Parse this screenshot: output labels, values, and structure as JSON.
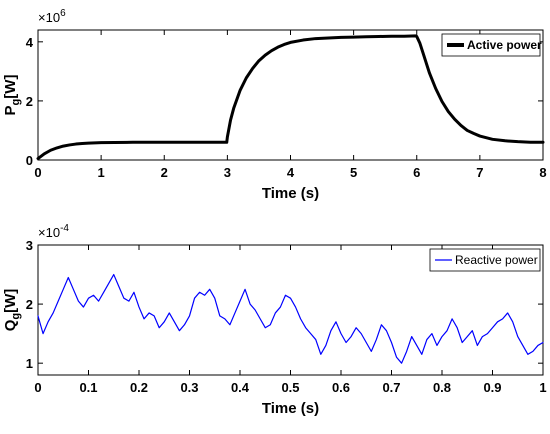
{
  "chart_data": [
    {
      "type": "line",
      "title": "",
      "xlabel": "Time (s)",
      "ylabel": "P",
      "ylabel_sub": "g",
      "ylabel_unit": "[W]",
      "y_exponent_base": "×10",
      "y_exponent_power": "6",
      "xlim": [
        0,
        8
      ],
      "ylim": [
        0,
        4.4
      ],
      "x_ticks": [
        0,
        1,
        2,
        3,
        4,
        5,
        6,
        7,
        8
      ],
      "x_tick_labels": [
        "0",
        "1",
        "2",
        "3",
        "4",
        "5",
        "6",
        "7",
        "8"
      ],
      "y_ticks": [
        0,
        2,
        4
      ],
      "y_tick_labels": [
        "0",
        "2",
        "4"
      ],
      "grid": false,
      "legend_position": "top-right",
      "legend_bold": true,
      "series": [
        {
          "name": "Active power",
          "color": "#000000",
          "line_width": 3,
          "x": [
            0,
            0.1,
            0.2,
            0.3,
            0.4,
            0.5,
            0.6,
            0.7,
            0.8,
            1.0,
            1.5,
            2.0,
            2.5,
            2.99,
            3.0,
            3.05,
            3.1,
            3.2,
            3.3,
            3.4,
            3.5,
            3.6,
            3.7,
            3.8,
            3.9,
            4.0,
            4.2,
            4.4,
            4.6,
            4.8,
            5.0,
            5.2,
            5.4,
            5.6,
            5.8,
            5.98,
            6.0,
            6.05,
            6.1,
            6.2,
            6.3,
            6.4,
            6.5,
            6.6,
            6.7,
            6.8,
            6.9,
            7.0,
            7.2,
            7.4,
            7.6,
            7.8,
            8.0
          ],
          "y": [
            0.05,
            0.21,
            0.33,
            0.41,
            0.47,
            0.51,
            0.54,
            0.56,
            0.57,
            0.59,
            0.6,
            0.6,
            0.6,
            0.6,
            0.78,
            1.35,
            1.75,
            2.35,
            2.78,
            3.1,
            3.36,
            3.55,
            3.7,
            3.82,
            3.91,
            3.98,
            4.06,
            4.11,
            4.13,
            4.15,
            4.16,
            4.17,
            4.18,
            4.19,
            4.19,
            4.2,
            4.18,
            3.95,
            3.62,
            2.95,
            2.42,
            1.98,
            1.64,
            1.38,
            1.17,
            1.0,
            0.9,
            0.81,
            0.7,
            0.65,
            0.62,
            0.6,
            0.6
          ]
        }
      ]
    },
    {
      "type": "line",
      "title": "",
      "xlabel": "Time (s)",
      "ylabel": "Q",
      "ylabel_sub": "g",
      "ylabel_unit": "[W]",
      "y_exponent_base": "×10",
      "y_exponent_power": "-4",
      "xlim": [
        0,
        1
      ],
      "ylim": [
        0.8,
        3.0
      ],
      "x_ticks": [
        0,
        0.1,
        0.2,
        0.3,
        0.4,
        0.5,
        0.6,
        0.7,
        0.8,
        0.9,
        1
      ],
      "x_tick_labels": [
        "0",
        "0.1",
        "0.2",
        "0.3",
        "0.4",
        "0.5",
        "0.6",
        "0.7",
        "0.8",
        "0.9",
        "1"
      ],
      "y_ticks": [
        1,
        2,
        3
      ],
      "y_tick_labels": [
        "1",
        "2",
        "3"
      ],
      "grid": false,
      "legend_position": "top-right",
      "legend_bold": false,
      "series": [
        {
          "name": "Reactive power",
          "color": "#0000ff",
          "line_width": 1.2,
          "x": [
            0,
            0.01,
            0.02,
            0.03,
            0.04,
            0.05,
            0.06,
            0.07,
            0.08,
            0.09,
            0.1,
            0.11,
            0.12,
            0.13,
            0.14,
            0.15,
            0.16,
            0.17,
            0.18,
            0.19,
            0.2,
            0.21,
            0.22,
            0.23,
            0.24,
            0.25,
            0.26,
            0.27,
            0.28,
            0.29,
            0.3,
            0.31,
            0.32,
            0.33,
            0.34,
            0.35,
            0.36,
            0.37,
            0.38,
            0.39,
            0.4,
            0.41,
            0.42,
            0.43,
            0.44,
            0.45,
            0.46,
            0.47,
            0.48,
            0.49,
            0.5,
            0.51,
            0.52,
            0.53,
            0.54,
            0.55,
            0.56,
            0.57,
            0.58,
            0.59,
            0.6,
            0.61,
            0.62,
            0.63,
            0.64,
            0.65,
            0.66,
            0.67,
            0.68,
            0.69,
            0.7,
            0.71,
            0.72,
            0.73,
            0.74,
            0.75,
            0.76,
            0.77,
            0.78,
            0.79,
            0.8,
            0.81,
            0.82,
            0.83,
            0.84,
            0.85,
            0.86,
            0.87,
            0.88,
            0.89,
            0.9,
            0.91,
            0.92,
            0.93,
            0.94,
            0.95,
            0.96,
            0.97,
            0.98,
            0.99,
            1.0
          ],
          "y": [
            1.8,
            1.5,
            1.7,
            1.85,
            2.05,
            2.25,
            2.45,
            2.25,
            2.05,
            1.95,
            2.1,
            2.15,
            2.05,
            2.2,
            2.35,
            2.5,
            2.3,
            2.1,
            2.05,
            2.2,
            1.95,
            1.75,
            1.85,
            1.8,
            1.6,
            1.7,
            1.85,
            1.7,
            1.55,
            1.65,
            1.8,
            2.1,
            2.2,
            2.15,
            2.25,
            2.1,
            1.8,
            1.75,
            1.65,
            1.85,
            2.05,
            2.25,
            2.0,
            1.9,
            1.75,
            1.6,
            1.65,
            1.85,
            1.95,
            2.15,
            2.1,
            1.95,
            1.75,
            1.6,
            1.5,
            1.4,
            1.15,
            1.3,
            1.55,
            1.7,
            1.5,
            1.35,
            1.45,
            1.6,
            1.5,
            1.35,
            1.2,
            1.4,
            1.65,
            1.55,
            1.35,
            1.1,
            1.0,
            1.2,
            1.45,
            1.3,
            1.15,
            1.4,
            1.5,
            1.3,
            1.45,
            1.55,
            1.75,
            1.6,
            1.35,
            1.45,
            1.55,
            1.3,
            1.45,
            1.5,
            1.6,
            1.7,
            1.75,
            1.85,
            1.7,
            1.45,
            1.3,
            1.15,
            1.2,
            1.3,
            1.35
          ]
        }
      ]
    }
  ]
}
